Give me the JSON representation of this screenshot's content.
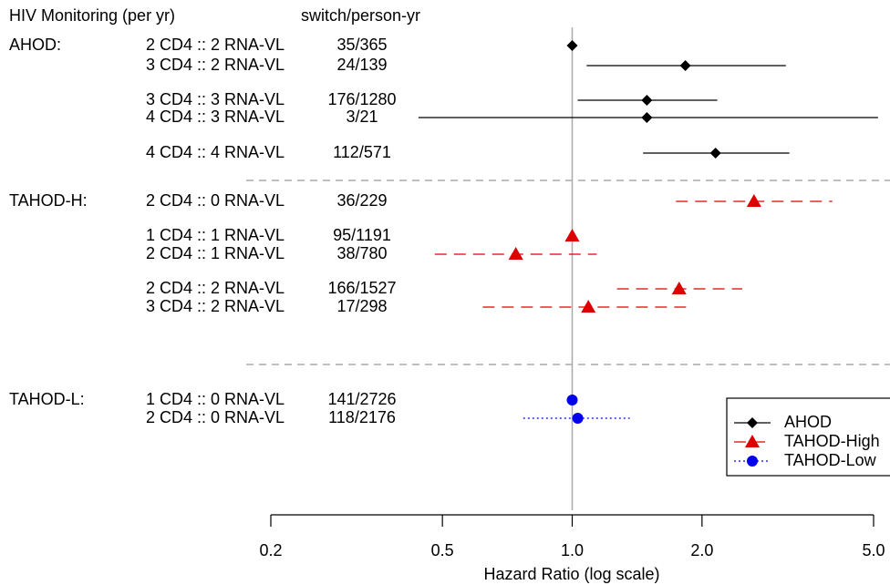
{
  "chart_data": {
    "type": "forest",
    "row_header": "HIV Monitoring (per yr)",
    "count_header": "switch/person-yr",
    "x_label": "Hazard Ratio (log scale)",
    "x_log": true,
    "xlim": [
      0.2,
      5.0
    ],
    "xticks": [
      0.2,
      0.5,
      {
        "value": 1,
        "label": "1.0"
      },
      {
        "value": 2,
        "label": "2.0"
      },
      {
        "value": 5,
        "label": "5.0"
      }
    ],
    "reference": 1,
    "legend": "bottom-right",
    "series": [
      {
        "name": "AHOD",
        "group_label": "AHOD:",
        "color": "#000000",
        "marker": "diamond",
        "dash": "solid",
        "rows": [
          "2 CD4 :: 2 RNA-VL",
          "3 CD4 :: 2 RNA-VL",
          "3 CD4 :: 3 RNA-VL",
          "4 CD4 :: 3 RNA-VL",
          "4 CD4 :: 4 RNA-VL"
        ],
        "counts": [
          "35/365",
          "24/139",
          "176/1280",
          "3/21",
          "112/571"
        ],
        "values": [
          1.0,
          1.83,
          1.49,
          1.49,
          2.15
        ],
        "lower": [
          null,
          1.08,
          1.03,
          0.44,
          1.46
        ],
        "upper": [
          null,
          3.13,
          2.17,
          5.12,
          3.19
        ]
      },
      {
        "name": "TAHOD-High",
        "group_label": "TAHOD-H:",
        "color": "#dd0000",
        "marker": "triangle",
        "dash": "dashed",
        "rows": [
          "2 CD4 :: 0 RNA-VL",
          "1 CD4 :: 1 RNA-VL",
          "2 CD4 :: 1 RNA-VL",
          "2 CD4 :: 2 RNA-VL",
          "3 CD4 :: 2 RNA-VL"
        ],
        "counts": [
          "36/229",
          "95/1191",
          "38/780",
          "166/1527",
          "17/298"
        ],
        "values": [
          2.64,
          1.0,
          0.74,
          1.77,
          1.09
        ],
        "lower": [
          1.74,
          null,
          0.48,
          1.27,
          0.62
        ],
        "upper": [
          4.01,
          null,
          1.14,
          2.48,
          1.89
        ]
      },
      {
        "name": "TAHOD-Low",
        "group_label": "TAHOD-L:",
        "color": "#0000ee",
        "marker": "circle",
        "dash": "dotted",
        "rows": [
          "1 CD4 :: 0 RNA-VL",
          "2 CD4 :: 0 RNA-VL"
        ],
        "counts": [
          "141/2726",
          "118/2176"
        ],
        "values": [
          1.0,
          1.03
        ],
        "lower": [
          null,
          0.77
        ],
        "upper": [
          null,
          1.36
        ]
      }
    ]
  }
}
